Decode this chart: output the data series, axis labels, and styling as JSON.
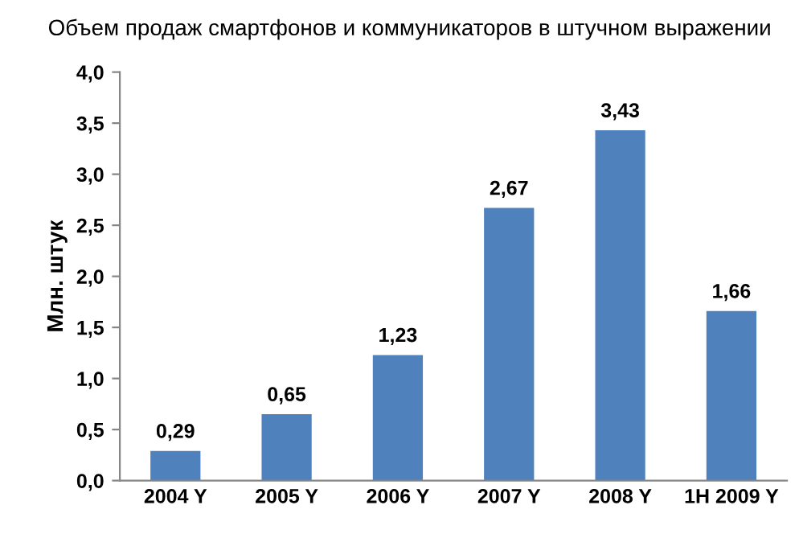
{
  "chart_data": {
    "type": "bar",
    "title": "Объем продаж смартфонов и коммуникаторов в штучном выражении",
    "ylabel": "Млн. штук",
    "categories": [
      "2004 Y",
      "2005 Y",
      "2006 Y",
      "2007 Y",
      "2008 Y",
      "1H 2009 Y"
    ],
    "values": [
      0.29,
      0.65,
      1.23,
      2.67,
      3.43,
      1.66
    ],
    "value_labels": [
      "0,29",
      "0,65",
      "1,23",
      "2,67",
      "3,43",
      "1,66"
    ],
    "color": "#4f81bd",
    "ylim": [
      0,
      4
    ],
    "yticks": [
      {
        "value": 0,
        "label": "0,0"
      },
      {
        "value": 0.5,
        "label": "0,5"
      },
      {
        "value": 1,
        "label": "1,0"
      },
      {
        "value": 1.5,
        "label": "1,5"
      },
      {
        "value": 2,
        "label": "2,0"
      },
      {
        "value": 2.5,
        "label": "2,5"
      },
      {
        "value": 3,
        "label": "3,0"
      },
      {
        "value": 3.5,
        "label": "3,5"
      },
      {
        "value": 4,
        "label": "4,0"
      }
    ],
    "grid": false
  }
}
